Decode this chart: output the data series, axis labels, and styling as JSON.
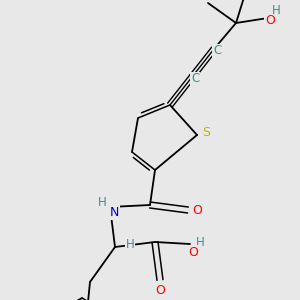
{
  "background_color": "#e8e8e8",
  "fig_size": [
    3.0,
    3.0
  ],
  "dpi": 100,
  "bond_color": "#000000",
  "bond_width": 1.3,
  "colors": {
    "S": "#b8b800",
    "O": "#ff0000",
    "N": "#0000cc",
    "C_teal": "#3a9090",
    "H": "#3a9090",
    "bond": "#000000"
  }
}
